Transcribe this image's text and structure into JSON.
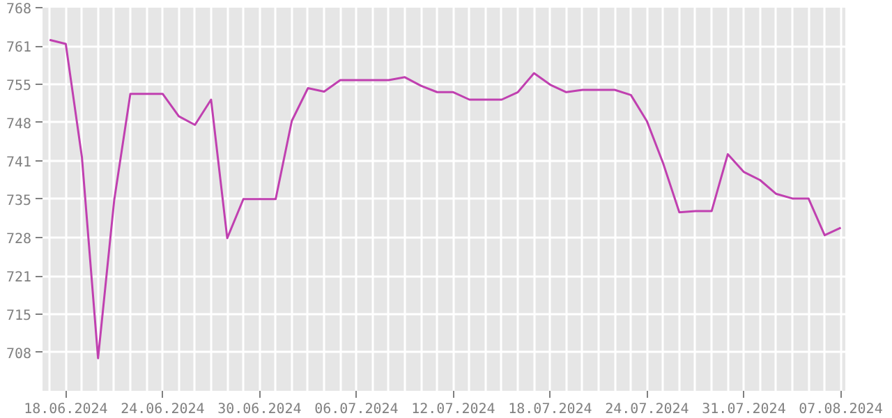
{
  "chart_data": {
    "type": "line",
    "categories": [
      null,
      "18.06.2024",
      null,
      null,
      null,
      null,
      null,
      "24.06.2024",
      null,
      null,
      null,
      null,
      null,
      "30.06.2024",
      null,
      null,
      null,
      null,
      null,
      "06.07.2024",
      null,
      null,
      null,
      null,
      null,
      "12.07.2024",
      null,
      null,
      null,
      null,
      null,
      "18.07.2024",
      null,
      null,
      null,
      null,
      null,
      "24.07.2024",
      null,
      null,
      null,
      null,
      null,
      "31.07.2024",
      null,
      null,
      null,
      null,
      null,
      "07.08.2024"
    ],
    "values": [
      762.4,
      761.7,
      742,
      707,
      734.5,
      753,
      753,
      753,
      749.1,
      747.6,
      752,
      727.9,
      734.7,
      734.7,
      734.7,
      748.3,
      754,
      753.4,
      755.4,
      755.4,
      755.4,
      755.4,
      755.9,
      754.4,
      753.3,
      753.3,
      752,
      752,
      752,
      753.3,
      756.6,
      754.6,
      753.3,
      753.7,
      753.7,
      753.7,
      752.8,
      748.2,
      740.9,
      732.4,
      732.6,
      732.6,
      742.5,
      739.4,
      738,
      735.6,
      734.8,
      734.8,
      728.4,
      729.7
    ],
    "color": "#c040b0",
    "ylim": [
      701.33,
      768
    ],
    "yticks": [
      {
        "value": 708,
        "label": "708"
      },
      {
        "value": 714.67,
        "label": "715"
      },
      {
        "value": 721.33,
        "label": "721"
      },
      {
        "value": 728,
        "label": "728"
      },
      {
        "value": 734.67,
        "label": "735"
      },
      {
        "value": 741.33,
        "label": "741"
      },
      {
        "value": 748,
        "label": "748"
      },
      {
        "value": 754.67,
        "label": "755"
      },
      {
        "value": 761.33,
        "label": "761"
      },
      {
        "value": 768,
        "label": "768"
      }
    ],
    "grid": true,
    "line_style": "solid"
  }
}
